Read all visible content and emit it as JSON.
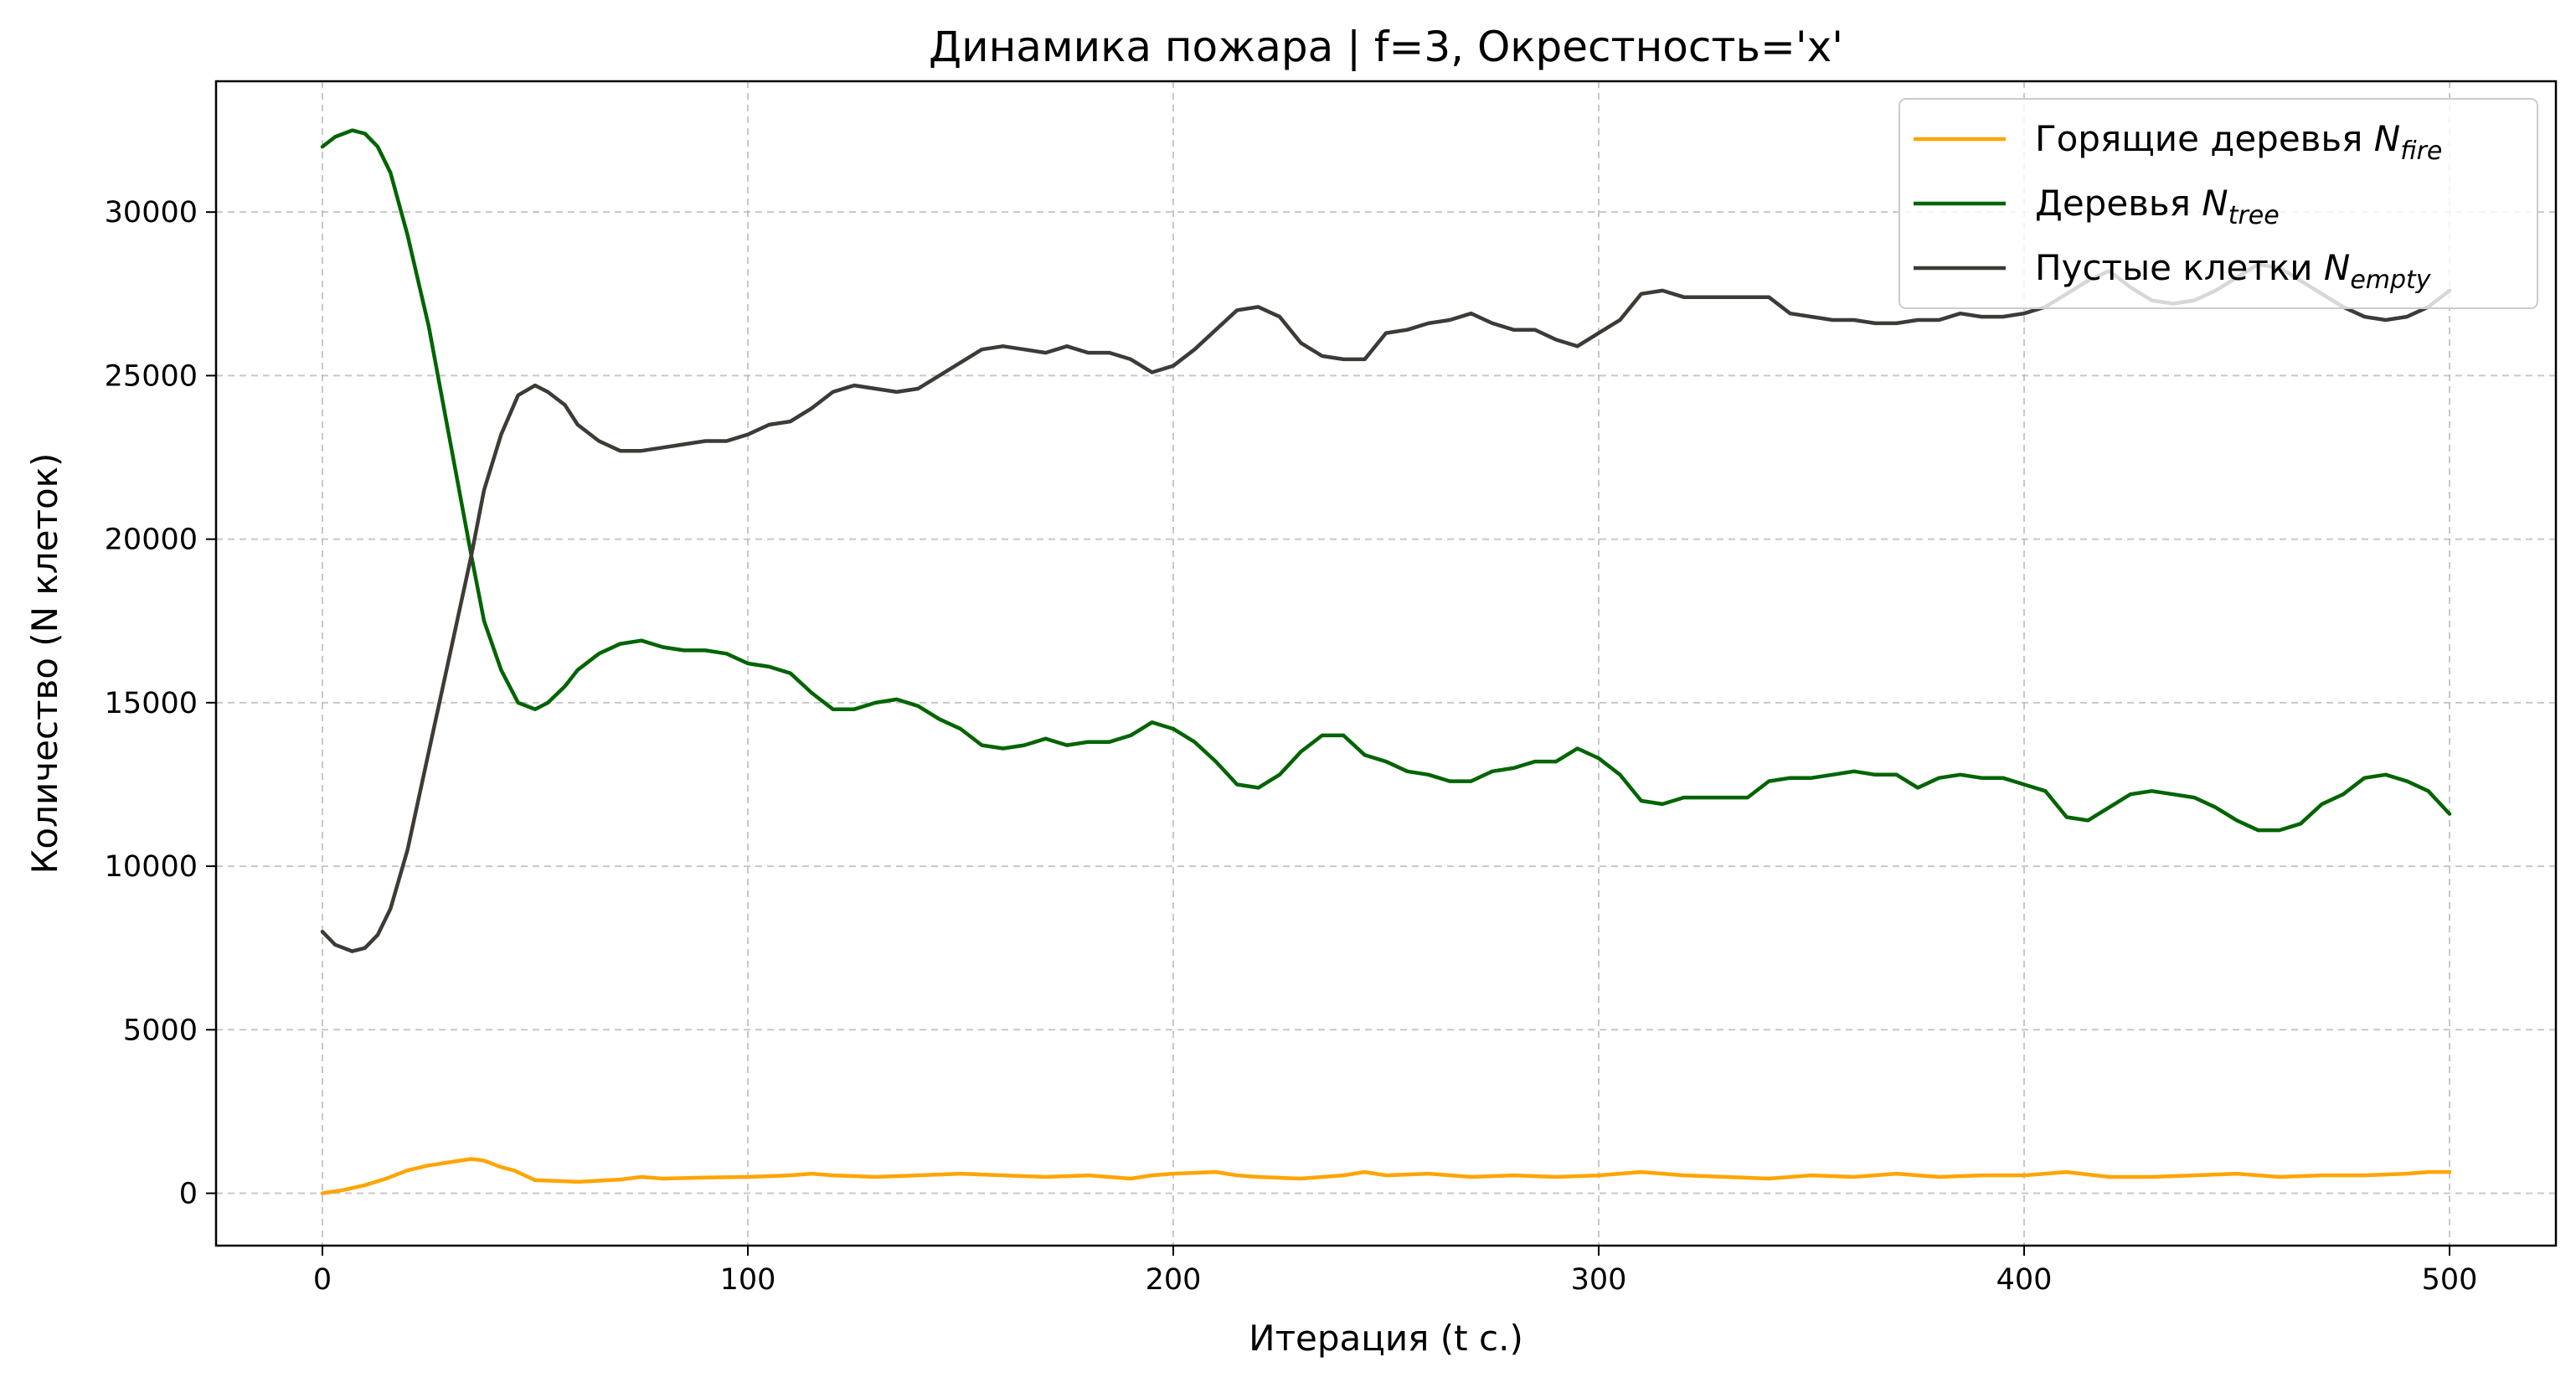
{
  "chart_data": {
    "type": "line",
    "title": "Динамика пожара | f=3, Окрестность='x'",
    "xlabel": "Итерация (t с.)",
    "ylabel": "Количество (N клеток)",
    "xlim": [
      -25,
      525
    ],
    "ylim": [
      -1600,
      34000
    ],
    "xticks": [
      0,
      100,
      200,
      300,
      400,
      500
    ],
    "yticks": [
      0,
      5000,
      10000,
      15000,
      20000,
      25000,
      30000
    ],
    "xtick_labels": [
      "0",
      "100",
      "200",
      "300",
      "400",
      "500"
    ],
    "ytick_labels": [
      "0",
      "5000",
      "10000",
      "15000",
      "20000",
      "25000",
      "30000"
    ],
    "grid": true,
    "legend_position": "top-right",
    "series": [
      {
        "name": "Горящие деревья N_fire",
        "legend_main": "Горящие деревья ",
        "legend_n": "N",
        "legend_sub": "fire",
        "color": "#FFA500",
        "x": [
          0,
          5,
          10,
          15,
          20,
          25,
          30,
          35,
          38,
          42,
          45,
          50,
          55,
          60,
          70,
          75,
          80,
          90,
          100,
          110,
          115,
          120,
          130,
          140,
          150,
          160,
          170,
          180,
          190,
          195,
          200,
          210,
          215,
          220,
          230,
          240,
          245,
          250,
          260,
          270,
          280,
          290,
          300,
          310,
          320,
          330,
          340,
          350,
          360,
          370,
          375,
          380,
          390,
          400,
          410,
          420,
          430,
          440,
          450,
          460,
          470,
          480,
          490,
          495,
          500
        ],
        "y": [
          0,
          100,
          250,
          450,
          700,
          850,
          950,
          1050,
          1000,
          800,
          700,
          400,
          380,
          350,
          420,
          500,
          450,
          480,
          500,
          550,
          600,
          550,
          500,
          550,
          600,
          550,
          500,
          550,
          450,
          550,
          600,
          650,
          550,
          500,
          450,
          550,
          650,
          550,
          600,
          500,
          550,
          500,
          550,
          650,
          550,
          500,
          450,
          550,
          500,
          600,
          550,
          500,
          550,
          550,
          650,
          500,
          500,
          550,
          600,
          500,
          550,
          550,
          600,
          650,
          650
        ]
      },
      {
        "name": "Деревья N_tree",
        "legend_main": "Деревья ",
        "legend_n": "N",
        "legend_sub": "tree",
        "color": "#006400",
        "x": [
          0,
          3,
          7,
          10,
          13,
          16,
          20,
          25,
          30,
          35,
          38,
          42,
          46,
          50,
          53,
          57,
          60,
          65,
          70,
          75,
          80,
          85,
          90,
          95,
          100,
          105,
          110,
          115,
          120,
          125,
          130,
          135,
          140,
          145,
          150,
          155,
          160,
          165,
          170,
          175,
          180,
          185,
          190,
          195,
          200,
          205,
          210,
          215,
          220,
          225,
          230,
          235,
          240,
          245,
          250,
          255,
          260,
          265,
          270,
          275,
          280,
          285,
          290,
          295,
          300,
          305,
          310,
          315,
          320,
          325,
          330,
          335,
          340,
          345,
          350,
          355,
          360,
          365,
          370,
          375,
          380,
          385,
          390,
          395,
          400,
          405,
          410,
          415,
          420,
          425,
          430,
          435,
          440,
          445,
          450,
          455,
          460,
          465,
          470,
          475,
          480,
          485,
          490,
          495,
          500
        ],
        "y": [
          32000,
          32300,
          32500,
          32400,
          32000,
          31200,
          29300,
          26500,
          23000,
          19500,
          17500,
          16000,
          15000,
          14800,
          15000,
          15500,
          16000,
          16500,
          16800,
          16900,
          16700,
          16600,
          16600,
          16500,
          16200,
          16100,
          15900,
          15300,
          14800,
          14800,
          15000,
          15100,
          14900,
          14500,
          14200,
          13700,
          13600,
          13700,
          13900,
          13700,
          13800,
          13800,
          14000,
          14400,
          14200,
          13800,
          13200,
          12500,
          12400,
          12800,
          13500,
          14000,
          14000,
          13400,
          13200,
          12900,
          12800,
          12600,
          12600,
          12900,
          13000,
          13200,
          13200,
          13600,
          13300,
          12800,
          12000,
          11900,
          12100,
          12100,
          12100,
          12100,
          12600,
          12700,
          12700,
          12800,
          12900,
          12800,
          12800,
          12400,
          12700,
          12800,
          12700,
          12700,
          12500,
          12300,
          11500,
          11400,
          11800,
          12200,
          12300,
          12200,
          12100,
          11800,
          11400,
          11100,
          11100,
          11300,
          11900,
          12200,
          12700,
          12800,
          12600,
          12300,
          11600
        ]
      },
      {
        "name": "Пустые клетки N_empty",
        "legend_main": "Пустые клетки ",
        "legend_n": "N",
        "legend_sub": "empty",
        "color": "#3E3A36",
        "x": [
          0,
          3,
          7,
          10,
          13,
          16,
          20,
          25,
          30,
          35,
          38,
          42,
          46,
          50,
          53,
          57,
          60,
          65,
          70,
          75,
          80,
          85,
          90,
          95,
          100,
          105,
          110,
          115,
          120,
          125,
          130,
          135,
          140,
          145,
          150,
          155,
          160,
          165,
          170,
          175,
          180,
          185,
          190,
          195,
          200,
          205,
          210,
          215,
          220,
          225,
          230,
          235,
          240,
          245,
          250,
          255,
          260,
          265,
          270,
          275,
          280,
          285,
          290,
          295,
          300,
          305,
          310,
          315,
          320,
          325,
          330,
          335,
          340,
          345,
          350,
          355,
          360,
          365,
          370,
          375,
          380,
          385,
          390,
          395,
          400,
          405,
          410,
          415,
          420,
          425,
          430,
          435,
          440,
          445,
          450,
          455,
          460,
          465,
          470,
          475,
          480,
          485,
          490,
          495,
          500
        ],
        "y": [
          8000,
          7600,
          7400,
          7500,
          7900,
          8700,
          10500,
          13500,
          16500,
          19500,
          21500,
          23200,
          24400,
          24700,
          24500,
          24100,
          23500,
          23000,
          22700,
          22700,
          22800,
          22900,
          23000,
          23000,
          23200,
          23500,
          23600,
          24000,
          24500,
          24700,
          24600,
          24500,
          24600,
          25000,
          25400,
          25800,
          25900,
          25800,
          25700,
          25900,
          25700,
          25700,
          25500,
          25100,
          25300,
          25800,
          26400,
          27000,
          27100,
          26800,
          26000,
          25600,
          25500,
          25500,
          26300,
          26400,
          26600,
          26700,
          26900,
          26600,
          26400,
          26400,
          26100,
          25900,
          26300,
          26700,
          27500,
          27600,
          27400,
          27400,
          27400,
          27400,
          27400,
          26900,
          26800,
          26700,
          26700,
          26600,
          26600,
          26700,
          26700,
          26900,
          26800,
          26800,
          26900,
          27100,
          27500,
          27900,
          28200,
          27700,
          27300,
          27200,
          27300,
          27600,
          28000,
          28400,
          28300,
          27900,
          27500,
          27100,
          26800,
          26700,
          26800,
          27100,
          27600
        ]
      }
    ]
  }
}
